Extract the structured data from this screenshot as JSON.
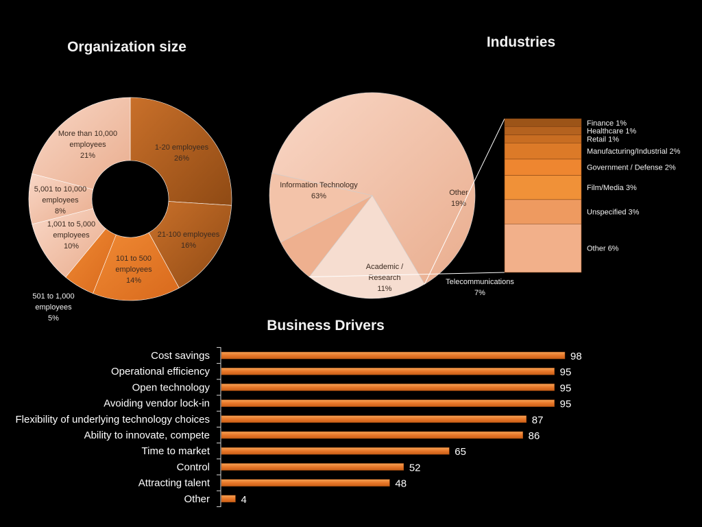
{
  "colors": {
    "background": "#000000",
    "bar": "#e8782a",
    "slice_dark": "#b9621f",
    "slice_mid": "#ef8f3e",
    "slice_light": "#f5c6ad"
  },
  "chart_data": [
    {
      "type": "pie",
      "variant": "donut",
      "title": "Organization size",
      "slices": [
        {
          "label_lines": [
            "1-20 employees",
            "26%"
          ],
          "value": 26
        },
        {
          "label_lines": [
            "21-100 employees",
            "16%"
          ],
          "value": 16
        },
        {
          "label_lines": [
            "101 to 500",
            "employees",
            "14%"
          ],
          "value": 14
        },
        {
          "label_lines": [
            "501 to 1,000",
            "employees",
            "5%"
          ],
          "value": 5
        },
        {
          "label_lines": [
            "1,001 to 5,000",
            "employees",
            "10%"
          ],
          "value": 10
        },
        {
          "label_lines": [
            "5,001 to 10,000",
            "employees",
            "8%"
          ],
          "value": 8
        },
        {
          "label_lines": [
            "More than 10,000",
            "employees",
            "21%"
          ],
          "value": 21
        }
      ]
    },
    {
      "type": "pie",
      "variant": "bar-of-pie",
      "title": "Industries",
      "slices": [
        {
          "label_lines": [
            "Information Technology",
            "63%"
          ],
          "value": 63
        },
        {
          "label_lines": [
            "Other",
            "19%"
          ],
          "value": 19
        },
        {
          "label_lines": [
            "Telecommunications",
            "7%"
          ],
          "value": 7
        },
        {
          "label_lines": [
            "Academic /",
            "Research",
            "11%"
          ],
          "value": 11
        }
      ],
      "breakdown": [
        {
          "label": "Finance 1%",
          "value": 1
        },
        {
          "label": "Healthcare 1%",
          "value": 1
        },
        {
          "label": "Retail 1%",
          "value": 1
        },
        {
          "label": "Manufacturing/Industrial 2%",
          "value": 2
        },
        {
          "label": "Government / Defense 2%",
          "value": 2
        },
        {
          "label": "Film/Media 3%",
          "value": 3
        },
        {
          "label": "Unspecified 3%",
          "value": 3
        },
        {
          "label": "Other 6%",
          "value": 6
        }
      ]
    },
    {
      "type": "bar",
      "orientation": "horizontal",
      "title": "Business Drivers",
      "categories": [
        "Cost savings",
        "Operational efficiency",
        "Open technology",
        "Avoiding vendor lock-in",
        "Flexibility of underlying technology choices",
        "Ability to innovate, compete",
        "Time to market",
        "Control",
        "Attracting talent",
        "Other"
      ],
      "values": [
        98,
        95,
        95,
        95,
        87,
        86,
        65,
        52,
        48,
        4
      ],
      "xlim": [
        0,
        98
      ]
    }
  ]
}
